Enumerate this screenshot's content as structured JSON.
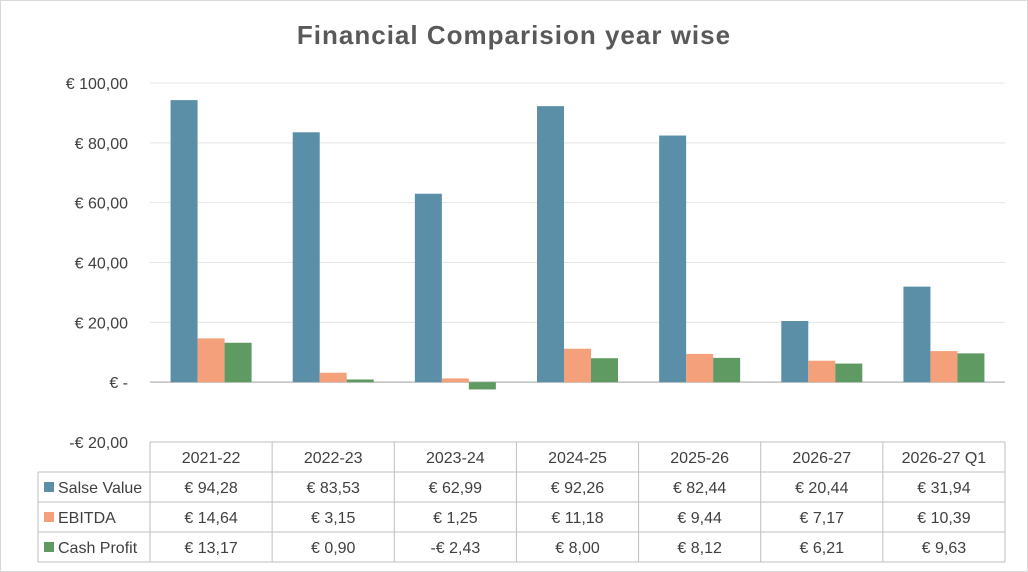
{
  "chart_data": {
    "type": "bar",
    "title": "Financial Comparision year wise",
    "categories": [
      "2021-22",
      "2022-23",
      "2023-24",
      "2024-25",
      "2025-26",
      "2026-27",
      "2026-27 Q1"
    ],
    "series": [
      {
        "name": "Salse Value",
        "color": "#5b8fa8",
        "values": [
          94.28,
          83.53,
          62.99,
          92.26,
          82.44,
          20.44,
          31.94
        ],
        "labels": [
          "€ 94,28",
          "€ 83,53",
          "€ 62,99",
          "€ 92,26",
          "€ 82,44",
          "€ 20,44",
          "€ 31,94"
        ]
      },
      {
        "name": "EBITDA",
        "color": "#f4a07a",
        "values": [
          14.64,
          3.15,
          1.25,
          11.18,
          9.44,
          7.17,
          10.39
        ],
        "labels": [
          "€ 14,64",
          "€ 3,15",
          "€ 1,25",
          "€ 11,18",
          "€ 9,44",
          "€ 7,17",
          "€ 10,39"
        ]
      },
      {
        "name": "Cash Profit",
        "color": "#5e9a62",
        "values": [
          13.17,
          0.9,
          -2.43,
          8.0,
          8.12,
          6.21,
          9.63
        ],
        "labels": [
          "€ 13,17",
          "€ 0,90",
          "-€ 2,43",
          "€ 8,00",
          "€ 8,12",
          "€ 6,21",
          "€ 9,63"
        ]
      }
    ],
    "ylim": [
      -20,
      100
    ],
    "yticks": [
      100,
      80,
      60,
      40,
      20,
      0,
      -20
    ],
    "ytick_labels": [
      "€ 100,00",
      "€ 80,00",
      "€ 60,00",
      "€ 40,00",
      "€ 20,00",
      "€ -",
      "-€ 20,00"
    ],
    "grid": true,
    "legend": "data-table"
  }
}
